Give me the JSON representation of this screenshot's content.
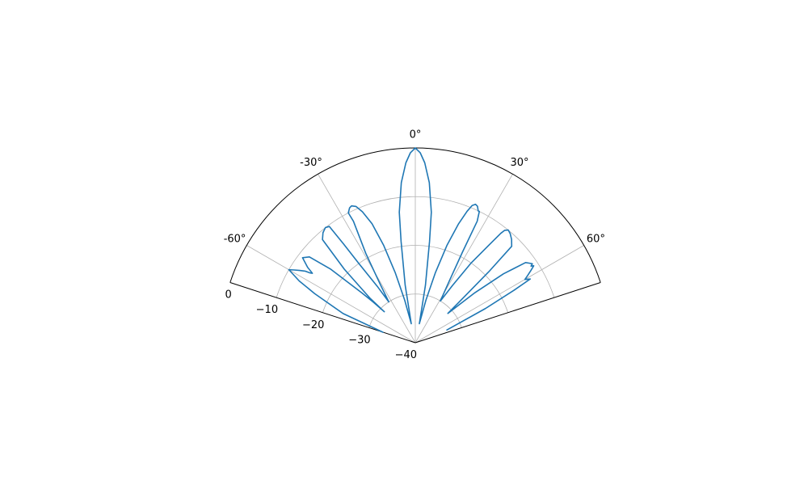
{
  "chart_data": {
    "type": "polar-line",
    "title": "",
    "theta_range_deg": [
      -72,
      72
    ],
    "theta_zero": "top",
    "theta_direction": "clockwise",
    "r_range": [
      -40,
      0
    ],
    "grid": true,
    "theta_tick_labels": [
      {
        "deg": -60,
        "label": "-60°"
      },
      {
        "deg": -30,
        "label": "-30°"
      },
      {
        "deg": 0,
        "label": "0°"
      },
      {
        "deg": 30,
        "label": "30°"
      },
      {
        "deg": 60,
        "label": "60°"
      }
    ],
    "r_tick_labels": [
      {
        "value": -40,
        "label": "−40"
      },
      {
        "value": -30,
        "label": "−30"
      },
      {
        "value": -20,
        "label": "−20"
      },
      {
        "value": -10,
        "label": "−10"
      },
      {
        "value": 0,
        "label": "0"
      }
    ],
    "series": [
      {
        "color": "#1f77b4",
        "theta_deg": [
          -72,
          -68,
          -64,
          -62,
          -60,
          -59,
          -58,
          -57,
          -56.5,
          -56,
          -55,
          -53,
          -51,
          -49,
          -47,
          -46,
          -45,
          -45.5,
          -44,
          -42,
          -40,
          -38,
          -36.5,
          -36,
          -35.5,
          -34,
          -33,
          -31,
          -29,
          -27,
          -27.3,
          -26,
          -25,
          -23.5,
          -22,
          -20,
          -18,
          -16,
          -14,
          -12,
          -10,
          -8,
          -7,
          -5,
          -3,
          -1.5,
          0,
          1.5,
          3,
          5,
          7,
          8,
          10,
          12,
          14,
          16,
          18,
          20,
          21.5,
          22.5,
          23.5,
          24.5,
          25.5,
          26,
          27,
          27.5,
          29,
          31,
          33,
          35,
          37,
          38,
          38.5,
          39.5,
          41,
          43,
          45,
          46,
          47,
          48,
          50,
          52,
          54,
          55,
          56,
          56.5,
          57,
          58,
          59,
          60,
          61,
          62,
          64,
          68
        ],
        "r": [
          -33,
          -24,
          -17,
          -13,
          -10,
          -11,
          -12,
          -13,
          -14,
          -14.5,
          -13,
          -11,
          -12,
          -17,
          -25,
          -28,
          -31,
          -27,
          -19,
          -11.5,
          -10.5,
          -10,
          -10.3,
          -15,
          -20,
          -26,
          -30,
          -26,
          -19,
          -12,
          -10,
          -9.2,
          -9,
          -9.5,
          -11,
          -14,
          -19,
          -25,
          -31,
          -36,
          -28,
          -19,
          -13,
          -7,
          -3,
          -1,
          0,
          -1,
          -3,
          -7,
          -13,
          -19,
          -28,
          -36,
          -31,
          -25,
          -19,
          -14,
          -11,
          -9.5,
          -9,
          -9.2,
          -10,
          -10,
          -12,
          -19,
          -26,
          -30,
          -26,
          -20,
          -15,
          -11.5,
          -10.5,
          -10,
          -10.3,
          -11,
          -12,
          -19,
          -27,
          -31,
          -24,
          -17,
          -12,
          -11.5,
          -11,
          -11.5,
          -11,
          -12,
          -13,
          -14,
          -13,
          -17,
          -24,
          -33
        ]
      }
    ]
  }
}
